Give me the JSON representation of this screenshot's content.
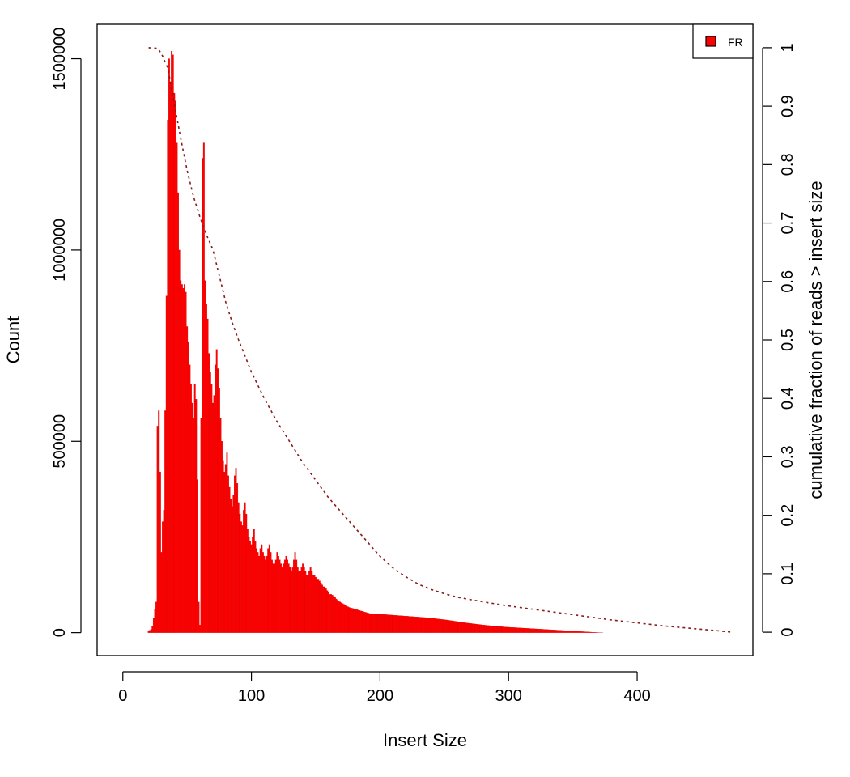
{
  "chart_data": {
    "type": "bar",
    "title": "",
    "xlabel": "Insert Size",
    "ylabel": "Count",
    "y2label": "cumulative fraction of reads > insert size",
    "xlim": [
      -20,
      490
    ],
    "ylim": [
      -60000,
      1590000
    ],
    "y2lim": [
      -0.04,
      1.04
    ],
    "x_ticks": [
      0,
      100,
      200,
      300,
      400
    ],
    "y_ticks": [
      0,
      500000,
      1000000,
      1500000
    ],
    "y2_ticks": [
      0,
      0.1,
      0.2,
      0.3,
      0.4,
      0.5,
      0.6,
      0.7,
      0.8,
      0.9,
      1
    ],
    "grid": false,
    "legend_position": "top-right",
    "series": [
      {
        "name": "FR",
        "kind": "bar",
        "color": "#ff0000",
        "x_start": 20,
        "x_step": 1,
        "values": [
          5000,
          6000,
          8000,
          18000,
          38000,
          60000,
          80000,
          540000,
          580000,
          420000,
          210000,
          290000,
          320000,
          580000,
          880000,
          1340000,
          1500000,
          1440000,
          1520000,
          1510000,
          1410000,
          1390000,
          1280000,
          1150000,
          1000000,
          920000,
          910000,
          900000,
          910000,
          890000,
          800000,
          760000,
          700000,
          650000,
          600000,
          560000,
          650000,
          610000,
          400000,
          80000,
          20000,
          560000,
          1240000,
          1280000,
          920000,
          860000,
          820000,
          730000,
          680000,
          650000,
          600000,
          620000,
          700000,
          740000,
          690000,
          640000,
          560000,
          500000,
          450000,
          420000,
          440000,
          470000,
          410000,
          380000,
          350000,
          330000,
          360000,
          410000,
          430000,
          390000,
          340000,
          310000,
          290000,
          280000,
          320000,
          340000,
          310000,
          270000,
          250000,
          240000,
          230000,
          250000,
          270000,
          240000,
          220000,
          210000,
          200000,
          220000,
          230000,
          210000,
          200000,
          190000,
          200000,
          220000,
          230000,
          210000,
          190000,
          180000,
          180000,
          190000,
          210000,
          200000,
          190000,
          180000,
          170000,
          180000,
          190000,
          200000,
          190000,
          180000,
          170000,
          160000,
          170000,
          190000,
          210000,
          190000,
          170000,
          160000,
          160000,
          170000,
          180000,
          170000,
          160000,
          150000,
          150000,
          160000,
          170000,
          160000,
          150000,
          150000,
          145000,
          140000,
          140000,
          135000,
          130000,
          125000,
          120000,
          120000,
          115000,
          110000,
          105000,
          100000,
          100000,
          98000,
          95000,
          92000,
          88000,
          85000,
          82000,
          80000,
          78000,
          76000,
          74000,
          72000,
          70000,
          68000,
          66000,
          65000,
          64000,
          63000,
          62000,
          61000,
          60000,
          59000,
          58000,
          57000,
          56000,
          55000,
          54000,
          53000,
          52000,
          51000,
          50000,
          49800,
          49600,
          49400,
          49200,
          49000,
          48700,
          48400,
          48200,
          48000,
          47700,
          47400,
          47200,
          47000,
          46700,
          46400,
          46200,
          46000,
          45700,
          45400,
          45200,
          45000,
          44700,
          44400,
          44200,
          44000,
          43700,
          43400,
          43200,
          43000,
          42700,
          42400,
          42200,
          42000,
          41700,
          41400,
          41200,
          41000,
          40700,
          40400,
          40200,
          40000,
          39700,
          39400,
          39200,
          39000,
          38600,
          38200,
          37800,
          37400,
          37000,
          36600,
          36200,
          35800,
          35400,
          35000,
          34600,
          34200,
          33800,
          33400,
          33000,
          32500,
          32000,
          31500,
          31000,
          30500,
          30000,
          29500,
          29000,
          28500,
          28000,
          27500,
          27000,
          26500,
          26000,
          25500,
          25000,
          24600,
          24200,
          23800,
          23400,
          23000,
          22600,
          22200,
          21800,
          21400,
          21000,
          20600,
          20200,
          19800,
          19400,
          19000,
          18700,
          18400,
          18100,
          17800,
          17500,
          17200,
          16900,
          16600,
          16300,
          16000,
          15700,
          15400,
          15100,
          14800,
          14500,
          14300,
          14100,
          13900,
          13700,
          13500,
          13300,
          13100,
          12900,
          12700,
          12500,
          12300,
          12100,
          11900,
          11700,
          11500,
          11300,
          11100,
          10900,
          10700,
          10500,
          10300,
          10100,
          9900,
          9700,
          9500,
          9300,
          9100,
          8900,
          8700,
          8500,
          8300,
          8100,
          7900,
          7700,
          7500,
          7300,
          7100,
          6900,
          6700,
          6500,
          6300,
          6100,
          5900,
          5700,
          5500,
          5300,
          5100,
          4900,
          4700,
          4500,
          4300,
          4100,
          3900,
          3700,
          3500,
          3300,
          3100,
          2900,
          2700,
          2500,
          2300,
          2100,
          1900,
          1700,
          1500,
          1300,
          1100,
          900,
          700,
          500,
          300,
          200,
          100,
          50,
          20,
          10,
          5
        ]
      },
      {
        "name": "",
        "kind": "line",
        "axis": "right",
        "color": "#8b1a1a",
        "dash": "dotted",
        "x": [
          20,
          27,
          30,
          35,
          40,
          45,
          50,
          55,
          60,
          65,
          70,
          75,
          80,
          85,
          90,
          100,
          110,
          120,
          130,
          140,
          150,
          160,
          170,
          180,
          190,
          200,
          210,
          220,
          230,
          240,
          250,
          260,
          280,
          300,
          320,
          340,
          360,
          380,
          400,
          420,
          440,
          460,
          474
        ],
        "y": [
          1.0,
          0.999,
          0.99,
          0.965,
          0.905,
          0.845,
          0.79,
          0.745,
          0.71,
          0.68,
          0.655,
          0.61,
          0.565,
          0.53,
          0.5,
          0.445,
          0.4,
          0.36,
          0.325,
          0.29,
          0.26,
          0.23,
          0.205,
          0.18,
          0.155,
          0.13,
          0.11,
          0.095,
          0.082,
          0.073,
          0.066,
          0.06,
          0.052,
          0.045,
          0.039,
          0.033,
          0.027,
          0.021,
          0.016,
          0.011,
          0.007,
          0.003,
          0.0
        ]
      }
    ]
  }
}
